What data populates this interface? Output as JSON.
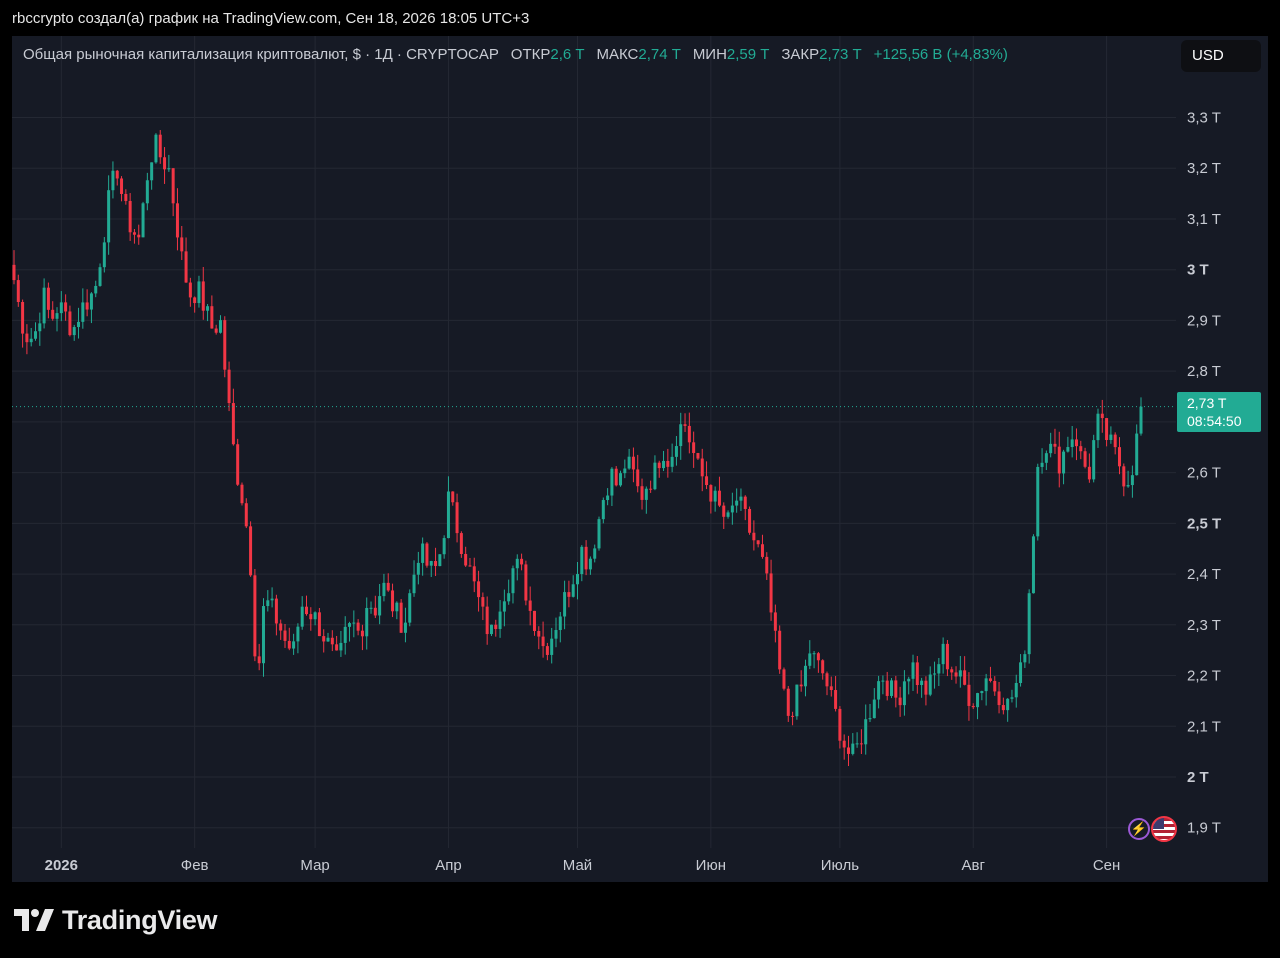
{
  "caption": "rbccrypto создал(а) график на TradingView.com, Сен 18, 2026 18:05 UTC+3",
  "legend": {
    "title": "Общая рыночная капитализация криптовалют, $ · 1Д · CRYPTOCAP",
    "open_label": "ОТКР",
    "open_value": "2,6 T",
    "high_label": "МАКС",
    "high_value": "2,74 T",
    "low_label": "МИН",
    "low_value": "2,59 T",
    "close_label": "ЗАКР",
    "close_value": "2,73 T",
    "change": "+125,56 B (+4,83%)"
  },
  "currency_button": "USD",
  "last_price": {
    "value": "2,73 T",
    "countdown": "08:54:50"
  },
  "brand": {
    "name": "TradingView",
    "icon": "tradingview-logo-icon"
  },
  "indicators": [
    "bolt-icon",
    "us-flag-icon"
  ],
  "colors": {
    "up": "#22ab94",
    "down": "#f23645",
    "background": "#161a25",
    "grid": "#242833"
  },
  "chart_data": {
    "type": "candlestick",
    "title": "Общая рыночная капитализация криптовалют, $ · 1Д · CRYPTOCAP",
    "ylim": [
      1.86,
      3.37
    ],
    "y_ticks": [
      "3,3 T",
      "3,2 T",
      "3,1 T",
      "3 T",
      "2,9 T",
      "2,8 T",
      "2,7 T",
      "2,6 T",
      "2,5 T",
      "2,4 T",
      "2,3 T",
      "2,2 T",
      "2,1 T",
      "2 T",
      "1,9 T"
    ],
    "y_tick_values": [
      3.3,
      3.2,
      3.1,
      3.0,
      2.9,
      2.8,
      2.7,
      2.6,
      2.5,
      2.4,
      2.3,
      2.2,
      2.1,
      2.0,
      1.9
    ],
    "bold_ticks": [
      "3 T",
      "2,5 T",
      "2 T"
    ],
    "x_ticks": [
      "2026",
      "Фев",
      "Мар",
      "Апр",
      "Май",
      "Июн",
      "Июль",
      "Авг",
      "Сен"
    ],
    "x_tick_days": [
      11,
      42,
      70,
      101,
      131,
      162,
      192,
      223,
      254
    ],
    "first_day": 0,
    "last_day": 262,
    "current_price": 2.73,
    "series": [
      {
        "values": [
          2.98,
          2.9,
          2.86,
          2.88,
          2.95,
          2.9,
          2.93,
          2.91,
          2.88,
          2.92,
          2.94,
          2.96,
          3.05,
          3.15,
          3.2,
          3.12,
          3.08,
          3.06,
          3.18,
          3.25,
          3.22,
          3.2,
          3.1,
          3.0,
          2.95,
          2.96,
          2.92,
          2.88
        ]
      },
      {
        "values": [
          2.9,
          2.75,
          2.62,
          2.55,
          2.45,
          2.18,
          2.35,
          2.33,
          2.3,
          2.26,
          2.25,
          2.34,
          2.33,
          2.31,
          2.28,
          2.25,
          2.22,
          2.28,
          2.3,
          2.28,
          2.35,
          2.33,
          2.38,
          2.35,
          2.32,
          2.3,
          2.38,
          2.45,
          2.42,
          2.4,
          2.45,
          2.55,
          2.5
        ]
      },
      {
        "values": [
          2.45,
          2.4,
          2.35,
          2.3,
          2.28,
          2.35,
          2.38,
          2.42,
          2.4,
          2.33,
          2.3,
          2.25,
          2.28,
          2.32,
          2.36,
          2.4,
          2.45,
          2.42,
          2.48,
          2.55,
          2.6,
          2.57,
          2.62,
          2.6,
          2.55,
          2.58,
          2.6,
          2.65,
          2.62,
          2.68,
          2.7
        ]
      },
      {
        "values": [
          2.65,
          2.6,
          2.58,
          2.55,
          2.52,
          2.5,
          2.55,
          2.52,
          2.48,
          2.45,
          2.4,
          2.3,
          2.2,
          2.12,
          2.15,
          2.18,
          2.25,
          2.22,
          2.2,
          2.15,
          2.1,
          2.05,
          2.04,
          2.08,
          2.12,
          2.18,
          2.2,
          2.17
        ]
      },
      {
        "values": [
          2.15,
          2.2,
          2.22,
          2.18,
          2.17,
          2.2,
          2.25,
          2.22,
          2.2,
          2.18,
          2.15,
          2.17,
          2.2,
          2.18,
          2.16,
          2.14,
          2.18,
          2.22,
          2.4,
          2.62,
          2.66,
          2.64,
          2.62,
          2.66,
          2.68,
          2.62,
          2.6,
          2.7,
          2.68,
          2.65,
          2.62,
          2.58,
          2.62,
          2.73
        ]
      }
    ]
  }
}
